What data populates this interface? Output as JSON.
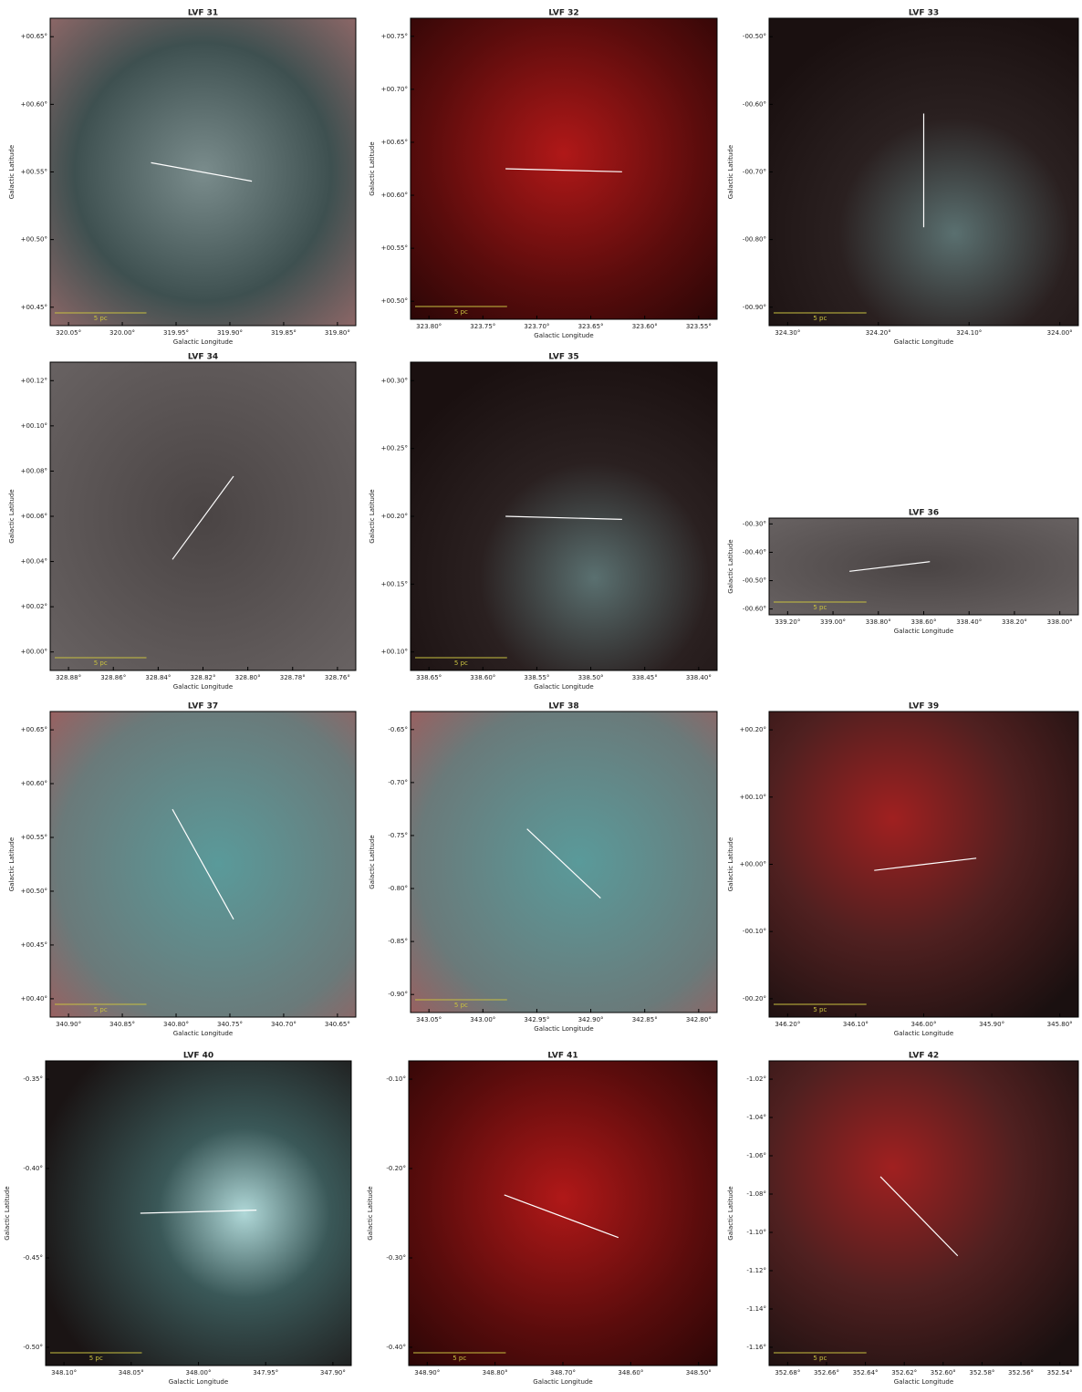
{
  "panels": [
    {
      "title": "LVF 31",
      "x_label": "Galactic Longitude",
      "y_label": "Galactic Latitude",
      "scale_bar": "5 pc",
      "x_ticks": [
        "320.05°",
        "320.00°",
        "319.95°",
        "319.90°",
        "319.85°",
        "319.80°"
      ],
      "y_ticks": [
        "+00.65°",
        "+00.60°",
        "+00.55°",
        "+00.50°",
        "+00.45°"
      ]
    },
    {
      "title": "LVF 32",
      "x_label": "Galactic Longitude",
      "y_label": "Galactic Latitude",
      "scale_bar": "5 pc",
      "x_ticks": [
        "323.80°",
        "323.75°",
        "323.70°",
        "323.65°",
        "323.60°",
        "323.55°"
      ],
      "y_ticks": [
        "+00.75°",
        "+00.70°",
        "+00.65°",
        "+00.60°",
        "+00.55°",
        "+00.50°"
      ]
    },
    {
      "title": "LVF 33",
      "x_label": "Galactic Longitude",
      "y_label": "Galactic Latitude",
      "scale_bar": "5 pc",
      "x_ticks": [
        "324.30°",
        "324.20°",
        "324.10°",
        "324.00°"
      ],
      "y_ticks": [
        "-00.50°",
        "-00.60°",
        "-00.70°",
        "-00.80°",
        "-00.90°"
      ]
    },
    {
      "title": "LVF 34",
      "x_label": "Galactic Longitude",
      "y_label": "Galactic Latitude",
      "scale_bar": "5 pc",
      "x_ticks": [
        "328.88°",
        "328.86°",
        "328.84°",
        "328.82°",
        "328.80°",
        "328.78°",
        "328.76°"
      ],
      "y_ticks": [
        "+00.12°",
        "+00.10°",
        "+00.08°",
        "+00.06°",
        "+00.04°",
        "+00.02°",
        "+00.00°"
      ]
    },
    {
      "title": "LVF 35",
      "x_label": "Galactic Longitude",
      "y_label": "Galactic Latitude",
      "scale_bar": "5 pc",
      "x_ticks": [
        "338.65°",
        "338.60°",
        "338.55°",
        "338.50°",
        "338.45°",
        "338.40°"
      ],
      "y_ticks": [
        "+00.30°",
        "+00.25°",
        "+00.20°",
        "+00.15°",
        "+00.10°"
      ]
    },
    {
      "title": "LVF 36",
      "x_label": "Galactic Longitude",
      "y_label": "Galactic Latitude",
      "scale_bar": "5 pc",
      "x_ticks": [
        "339.20°",
        "339.00°",
        "338.80°",
        "338.60°",
        "338.40°",
        "338.20°",
        "338.00°"
      ],
      "y_ticks": [
        "-00.30°",
        "-00.40°",
        "-00.50°",
        "-00.60°"
      ]
    },
    {
      "title": "LVF 37",
      "x_label": "Galactic Longitude",
      "y_label": "Galactic Latitude",
      "scale_bar": "5 pc",
      "x_ticks": [
        "340.90°",
        "340.85°",
        "340.80°",
        "340.75°",
        "340.70°",
        "340.65°"
      ],
      "y_ticks": [
        "+00.65°",
        "+00.60°",
        "+00.55°",
        "+00.50°",
        "+00.45°",
        "+00.40°"
      ]
    },
    {
      "title": "LVF 38",
      "x_label": "Galactic Longitude",
      "y_label": "Galactic Latitude",
      "scale_bar": "5 pc",
      "x_ticks": [
        "343.05°",
        "343.00°",
        "342.95°",
        "342.90°",
        "342.85°",
        "342.80°"
      ],
      "y_ticks": [
        "-0.65°",
        "-0.70°",
        "-0.75°",
        "-0.80°",
        "-0.85°",
        "-0.90°"
      ]
    },
    {
      "title": "LVF 39",
      "x_label": "Galactic Longitude",
      "y_label": "Galactic Latitude",
      "scale_bar": "5 pc",
      "x_ticks": [
        "346.20°",
        "346.10°",
        "346.00°",
        "345.90°",
        "345.80°"
      ],
      "y_ticks": [
        "+00.20°",
        "+00.10°",
        "+00.00°",
        "-00.10°",
        "-00.20°"
      ]
    },
    {
      "title": "LVF 40",
      "x_label": "Galactic Longitude",
      "y_label": "Galactic Latitude",
      "scale_bar": "5 pc",
      "x_ticks": [
        "348.10°",
        "348.05°",
        "348.00°",
        "347.95°",
        "347.90°"
      ],
      "y_ticks": [
        "-0.35°",
        "-0.40°",
        "-0.45°",
        "-0.50°"
      ]
    },
    {
      "title": "LVF 41",
      "x_label": "Galactic Longitude",
      "y_label": "Galactic Latitude",
      "scale_bar": "5 pc",
      "x_ticks": [
        "348.90°",
        "348.80°",
        "348.70°",
        "348.60°",
        "348.50°"
      ],
      "y_ticks": [
        "-0.10°",
        "-0.20°",
        "-0.30°",
        "-0.40°"
      ]
    },
    {
      "title": "LVF 42",
      "x_label": "Galactic Longitude",
      "y_label": "Galactic Latitude",
      "scale_bar": "5 pc",
      "x_ticks": [
        "352.68°",
        "352.66°",
        "352.64°",
        "352.62°",
        "352.60°",
        "352.58°",
        "352.56°",
        "352.54°"
      ],
      "y_ticks": [
        "-1.02°",
        "-1.04°",
        "-1.06°",
        "-1.08°",
        "-1.10°",
        "-1.12°",
        "-1.14°",
        "-1.16°"
      ]
    }
  ]
}
